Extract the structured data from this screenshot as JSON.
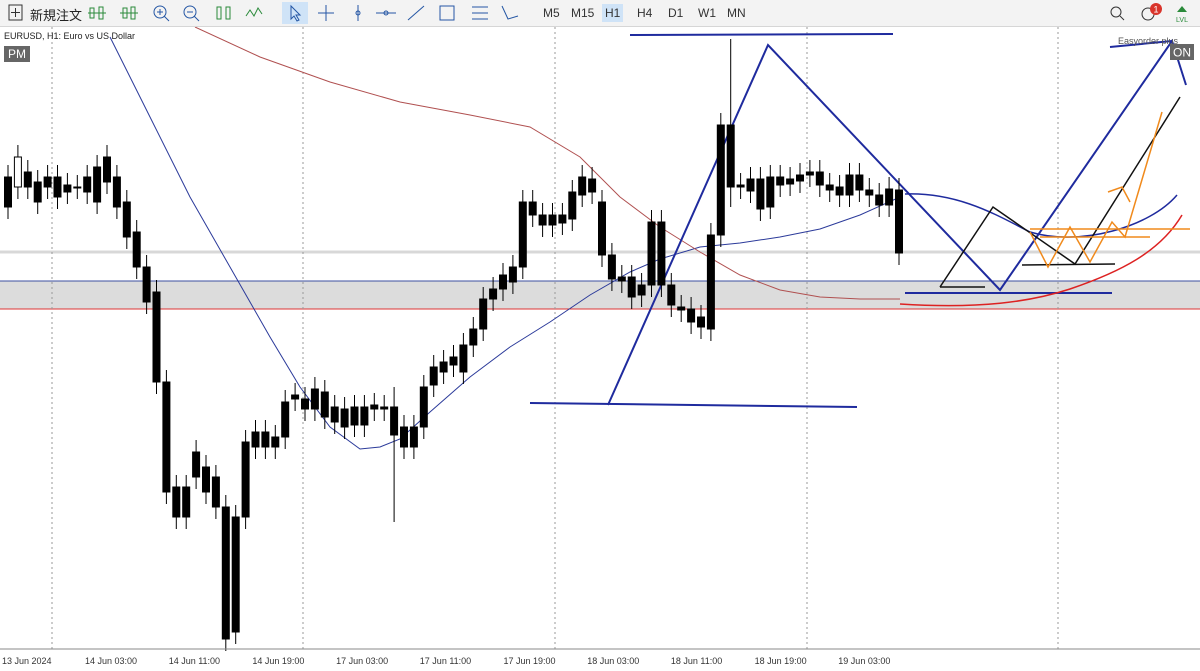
{
  "toolbar": {
    "new_order": "新規注文",
    "timeframes": [
      "M5",
      "M15",
      "H1",
      "H4",
      "D1",
      "W1",
      "MN"
    ],
    "active_timeframe": "H1",
    "notification_count": "1",
    "level_icon": "LVL"
  },
  "chart": {
    "symbol_label": "EURUSD, H1:  Euro vs US Dollar",
    "session_label": "PM",
    "plugin_label": "Easyorder plus",
    "plugin_state": "ON",
    "time_labels": [
      "13 Jun 2024",
      "14 Jun 03:00",
      "14 Jun 11:00",
      "14 Jun 19:00",
      "17 Jun 03:00",
      "17 Jun 11:00",
      "17 Jun 19:00",
      "18 Jun 03:00",
      "18 Jun 11:00",
      "18 Jun 19:00",
      "19 Jun 03:00"
    ]
  }
}
